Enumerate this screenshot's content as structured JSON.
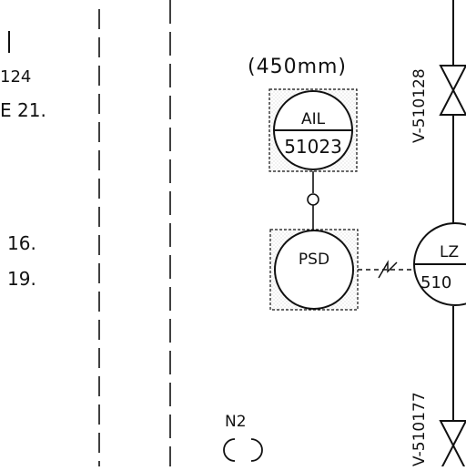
{
  "left_column": {
    "fragment_1": "124",
    "fragment_2": "E 21.",
    "fragment_3": "16.",
    "fragment_4": "19."
  },
  "instrument_top": {
    "size_note": "(450mm)",
    "tag": "AIL",
    "number": "51023"
  },
  "instrument_mid": {
    "tag": "PSD"
  },
  "instrument_right": {
    "tag": "LZ",
    "number": "510"
  },
  "valves": {
    "upper_label": "V-510128",
    "lower_label": "V-510177"
  },
  "n2_label": "N2"
}
